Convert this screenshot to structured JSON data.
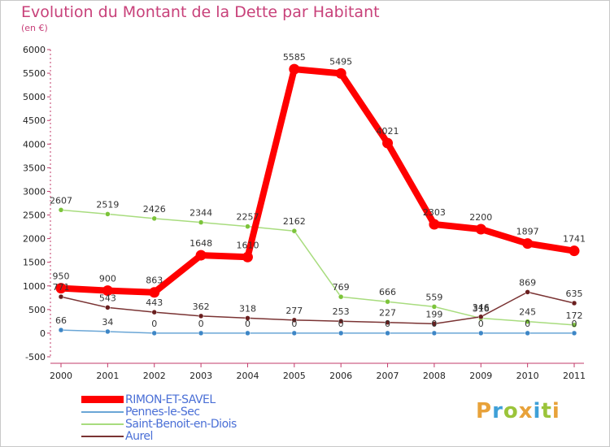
{
  "header": {
    "title": "Evolution du Montant de la Dette par Habitant",
    "subtitle": "(en €)"
  },
  "logo": {
    "text": "Proxiti",
    "letter_colors": [
      "#e8a23a",
      "#3fa0d8",
      "#9bc43a",
      "#e8a23a",
      "#3fa0d8",
      "#9bc43a",
      "#e8a23a"
    ]
  },
  "chart_data": {
    "type": "line",
    "title": "Evolution du Montant de la Dette par Habitant",
    "subtitle": "(en €)",
    "xlabel": "",
    "ylabel": "",
    "x": [
      "2000",
      "2001",
      "2002",
      "2003",
      "2004",
      "2005",
      "2006",
      "2007",
      "2008",
      "2009",
      "2010",
      "2011"
    ],
    "ylim": [
      -500,
      6000
    ],
    "yticks": [
      -500,
      0,
      500,
      1000,
      1500,
      2000,
      2500,
      3000,
      3500,
      4000,
      4500,
      5000,
      5500,
      6000
    ],
    "grid": false,
    "legend_position": "bottom-left",
    "series": [
      {
        "name": "RIMON-ET-SAVEL",
        "values": [
          950,
          900,
          863,
          1648,
          1610,
          5585,
          5495,
          4021,
          2303,
          2200,
          1897,
          1741
        ],
        "labels": [
          "950",
          "900",
          "863",
          "1648",
          "1610",
          "5585",
          "5495",
          "4021",
          "2303",
          "2200",
          "1897",
          "1741"
        ],
        "color": "#ff0000",
        "marker_color": "#ff0000",
        "emphasis": "thick"
      },
      {
        "name": "Pennes-le-Sec",
        "values": [
          66,
          34,
          0,
          0,
          0,
          0,
          0,
          0,
          0,
          0,
          0,
          0
        ],
        "labels": [
          "66",
          "34",
          "0",
          "0",
          "0",
          "0",
          "0",
          "0",
          "0",
          "0",
          "0",
          "0"
        ],
        "color": "#6aa6d6",
        "marker_color": "#3d86c6",
        "emphasis": "thin"
      },
      {
        "name": "Saint-Benoit-en-Diois",
        "values": [
          2607,
          2519,
          2426,
          2344,
          2257,
          2162,
          769,
          666,
          559,
          316,
          245,
          172
        ],
        "labels": [
          "2607",
          "2519",
          "2426",
          "2344",
          "2257",
          "2162",
          "769",
          "666",
          "559",
          "316",
          "245",
          "172"
        ],
        "color": "#a8dc7e",
        "marker_color": "#7cc43a",
        "emphasis": "thin"
      },
      {
        "name": "Aurel",
        "values": [
          771,
          543,
          443,
          362,
          318,
          277,
          253,
          227,
          199,
          346,
          869,
          635
        ],
        "labels": [
          "771",
          "543",
          "443",
          "362",
          "318",
          "277",
          "253",
          "227",
          "199",
          "346",
          "869",
          "635"
        ],
        "color": "#7a3333",
        "marker_color": "#6a1f1f",
        "emphasis": "thin"
      }
    ]
  }
}
